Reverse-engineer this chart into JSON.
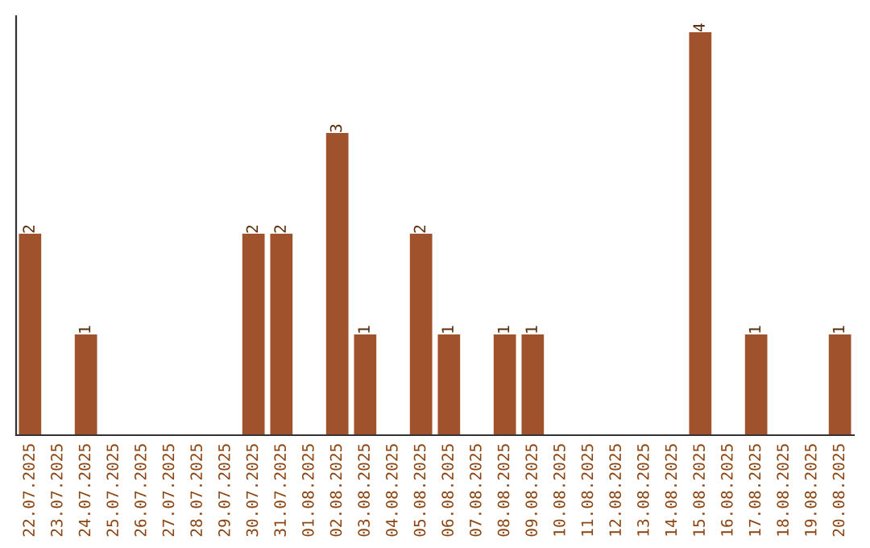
{
  "chart_data": {
    "type": "bar",
    "categories": [
      "22.07.2025",
      "23.07.2025",
      "24.07.2025",
      "25.07.2025",
      "26.07.2025",
      "27.07.2025",
      "28.07.2025",
      "29.07.2025",
      "30.07.2025",
      "31.07.2025",
      "01.08.2025",
      "02.08.2025",
      "03.08.2025",
      "04.08.2025",
      "05.08.2025",
      "06.08.2025",
      "07.08.2025",
      "08.08.2025",
      "09.08.2025",
      "10.08.2025",
      "11.08.2025",
      "12.08.2025",
      "13.08.2025",
      "14.08.2025",
      "15.08.2025",
      "16.08.2025",
      "17.08.2025",
      "18.08.2025",
      "19.08.2025",
      "20.08.2025"
    ],
    "values": [
      2,
      0,
      1,
      0,
      0,
      0,
      0,
      0,
      2,
      2,
      0,
      3,
      1,
      0,
      2,
      1,
      0,
      1,
      1,
      0,
      0,
      0,
      0,
      0,
      4,
      0,
      1,
      0,
      0,
      1
    ],
    "value_labels": [
      "2",
      null,
      "1",
      null,
      null,
      null,
      null,
      null,
      "2",
      "2",
      null,
      "3",
      "1",
      null,
      "2",
      "1",
      null,
      "1",
      "1",
      null,
      null,
      null,
      null,
      null,
      "4",
      null,
      "1",
      null,
      null,
      "1"
    ],
    "color": "#a0522d",
    "tick_labels": "x",
    "grid": false,
    "legend": false
  }
}
